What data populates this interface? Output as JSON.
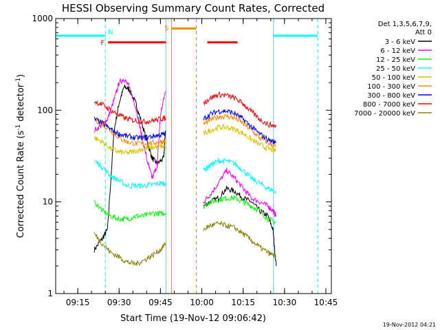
{
  "chart_data": {
    "type": "line",
    "title": "HESSI Observing Summary Count Rates, Corrected",
    "xlabel": "Start Time (19-Nov-12 09:06:42)",
    "ylabel_main": "Corrected Count Rate (s",
    "ylabel_sup1": "-1",
    "ylabel_mid": " detector",
    "ylabel_sup2": "-1",
    "ylabel_end": ")",
    "y_scale": "log",
    "ylim": [
      1,
      1000
    ],
    "xlim": [
      "09:07",
      "10:47"
    ],
    "x_ticks": [
      "09:15",
      "09:30",
      "09:45",
      "10:00",
      "10:15",
      "10:30",
      "10:45"
    ],
    "y_ticks": [
      "1",
      "10",
      "100",
      "1000"
    ],
    "timestamp": "19-Nov-2012 04:21",
    "legend_header": [
      "Det 1,3,5,6,7,9,",
      "Att 0"
    ],
    "flags": [
      {
        "label": "N",
        "color": "#00ffff",
        "line": "dashed",
        "at": "09:25"
      },
      {
        "label": "F",
        "color": "#ff0000",
        "line": "",
        "at": "09:26"
      },
      {
        "label": "S",
        "color": "#ff8800",
        "line": "solid",
        "at": "09:49"
      }
    ],
    "series": [
      {
        "name": "3 - 6 keV",
        "color": "#000000",
        "seg1": [
          [
            9.35,
            3.0
          ],
          [
            9.4,
            4.0
          ],
          [
            9.43,
            5.0
          ],
          [
            9.47,
            60
          ],
          [
            9.5,
            120
          ],
          [
            9.53,
            180
          ],
          [
            9.56,
            170
          ],
          [
            9.6,
            120
          ],
          [
            9.63,
            80
          ],
          [
            9.67,
            45
          ],
          [
            9.7,
            30
          ],
          [
            9.73,
            26
          ],
          [
            9.77,
            30
          ],
          [
            9.78,
            60
          ]
        ],
        "seg2": [
          [
            10.01,
            9
          ],
          [
            10.05,
            10
          ],
          [
            10.1,
            11
          ],
          [
            10.15,
            14
          ],
          [
            10.2,
            13
          ],
          [
            10.25,
            11
          ],
          [
            10.3,
            10
          ],
          [
            10.35,
            8
          ],
          [
            10.4,
            7
          ],
          [
            10.43,
            5
          ],
          [
            10.45,
            2
          ]
        ]
      },
      {
        "name": "6 - 12 keV",
        "color": "#ff00ff",
        "seg1": [
          [
            9.35,
            60
          ],
          [
            9.4,
            70
          ],
          [
            9.43,
            80
          ],
          [
            9.47,
            130
          ],
          [
            9.5,
            200
          ],
          [
            9.53,
            220
          ],
          [
            9.56,
            180
          ],
          [
            9.6,
            110
          ],
          [
            9.63,
            60
          ],
          [
            9.67,
            28
          ],
          [
            9.7,
            18
          ],
          [
            9.73,
            25
          ],
          [
            9.75,
            90
          ],
          [
            9.78,
            160
          ]
        ],
        "seg2": [
          [
            10.01,
            10
          ],
          [
            10.05,
            12
          ],
          [
            10.1,
            16
          ],
          [
            10.15,
            22
          ],
          [
            10.2,
            18
          ],
          [
            10.25,
            14
          ],
          [
            10.3,
            11
          ],
          [
            10.35,
            10
          ],
          [
            10.4,
            9
          ],
          [
            10.43,
            8
          ],
          [
            10.45,
            7
          ]
        ]
      },
      {
        "name": "12 - 25 keV",
        "color": "#00ff00",
        "seg1": [
          [
            9.35,
            10
          ],
          [
            9.4,
            8
          ],
          [
            9.45,
            7
          ],
          [
            9.5,
            6.5
          ],
          [
            9.55,
            6.5
          ],
          [
            9.6,
            7
          ],
          [
            9.65,
            7
          ],
          [
            9.7,
            7.5
          ],
          [
            9.75,
            7.5
          ],
          [
            9.78,
            7.5
          ]
        ],
        "seg2": [
          [
            10.01,
            9
          ],
          [
            10.05,
            10
          ],
          [
            10.1,
            10.5
          ],
          [
            10.15,
            11
          ],
          [
            10.2,
            11
          ],
          [
            10.25,
            10
          ],
          [
            10.3,
            9
          ],
          [
            10.35,
            8
          ],
          [
            10.4,
            6.5
          ],
          [
            10.45,
            6
          ]
        ]
      },
      {
        "name": "25 - 50 keV",
        "color": "#00ffff",
        "seg1": [
          [
            9.35,
            28
          ],
          [
            9.4,
            24
          ],
          [
            9.45,
            19
          ],
          [
            9.5,
            17
          ],
          [
            9.55,
            15
          ],
          [
            9.6,
            15
          ],
          [
            9.65,
            15
          ],
          [
            9.7,
            15.5
          ],
          [
            9.75,
            16
          ],
          [
            9.78,
            16
          ]
        ],
        "seg2": [
          [
            10.01,
            22
          ],
          [
            10.05,
            25
          ],
          [
            10.1,
            28
          ],
          [
            10.15,
            28
          ],
          [
            10.2,
            26
          ],
          [
            10.25,
            22
          ],
          [
            10.3,
            18
          ],
          [
            10.35,
            16
          ],
          [
            10.4,
            14
          ],
          [
            10.45,
            13
          ]
        ]
      },
      {
        "name": "50 - 100 keV",
        "color": "#ddc000",
        "seg1": [
          [
            9.35,
            50
          ],
          [
            9.4,
            45
          ],
          [
            9.45,
            38
          ],
          [
            9.5,
            35
          ],
          [
            9.55,
            34
          ],
          [
            9.6,
            36
          ],
          [
            9.65,
            38
          ],
          [
            9.7,
            39
          ],
          [
            9.75,
            40
          ],
          [
            9.78,
            40
          ]
        ],
        "seg2": [
          [
            10.01,
            55
          ],
          [
            10.05,
            60
          ],
          [
            10.1,
            65
          ],
          [
            10.15,
            65
          ],
          [
            10.2,
            62
          ],
          [
            10.25,
            56
          ],
          [
            10.3,
            48
          ],
          [
            10.35,
            42
          ],
          [
            10.4,
            38
          ],
          [
            10.45,
            36
          ]
        ]
      },
      {
        "name": "100 - 300 keV",
        "color": "#ff8800",
        "seg1": [
          [
            9.35,
            80
          ],
          [
            9.4,
            70
          ],
          [
            9.45,
            60
          ],
          [
            9.5,
            50
          ],
          [
            9.55,
            45
          ],
          [
            9.6,
            43
          ],
          [
            9.65,
            43
          ],
          [
            9.7,
            44
          ],
          [
            9.75,
            45
          ],
          [
            9.78,
            46
          ]
        ],
        "seg2": [
          [
            10.01,
            70
          ],
          [
            10.05,
            78
          ],
          [
            10.1,
            85
          ],
          [
            10.15,
            86
          ],
          [
            10.2,
            82
          ],
          [
            10.25,
            72
          ],
          [
            10.3,
            60
          ],
          [
            10.35,
            50
          ],
          [
            10.4,
            44
          ],
          [
            10.45,
            40
          ]
        ]
      },
      {
        "name": "300 - 800 keV",
        "color": "#0000ff",
        "seg1": [
          [
            9.35,
            80
          ],
          [
            9.4,
            72
          ],
          [
            9.45,
            62
          ],
          [
            9.5,
            55
          ],
          [
            9.55,
            52
          ],
          [
            9.6,
            50
          ],
          [
            9.65,
            50
          ],
          [
            9.7,
            52
          ],
          [
            9.75,
            54
          ],
          [
            9.78,
            55
          ]
        ],
        "seg2": [
          [
            10.01,
            80
          ],
          [
            10.05,
            90
          ],
          [
            10.1,
            98
          ],
          [
            10.15,
            98
          ],
          [
            10.2,
            92
          ],
          [
            10.25,
            80
          ],
          [
            10.3,
            66
          ],
          [
            10.35,
            55
          ],
          [
            10.4,
            48
          ],
          [
            10.45,
            44
          ]
        ]
      },
      {
        "name": "800 - 7000 keV",
        "color": "#ff0000",
        "seg1": [
          [
            9.35,
            125
          ],
          [
            9.4,
            115
          ],
          [
            9.45,
            100
          ],
          [
            9.5,
            88
          ],
          [
            9.55,
            80
          ],
          [
            9.6,
            77
          ],
          [
            9.65,
            75
          ],
          [
            9.7,
            77
          ],
          [
            9.75,
            80
          ],
          [
            9.78,
            82
          ]
        ],
        "seg2": [
          [
            10.01,
            120
          ],
          [
            10.05,
            135
          ],
          [
            10.1,
            148
          ],
          [
            10.15,
            145
          ],
          [
            10.2,
            135
          ],
          [
            10.25,
            118
          ],
          [
            10.3,
            96
          ],
          [
            10.35,
            80
          ],
          [
            10.4,
            70
          ],
          [
            10.45,
            67
          ]
        ]
      },
      {
        "name": "7000 - 20000 keV",
        "color": "#888000",
        "seg1": [
          [
            9.35,
            4.5
          ],
          [
            9.4,
            3.5
          ],
          [
            9.45,
            2.8
          ],
          [
            9.5,
            2.5
          ],
          [
            9.55,
            2.2
          ],
          [
            9.6,
            2.1
          ],
          [
            9.65,
            2.3
          ],
          [
            9.7,
            2.6
          ],
          [
            9.75,
            3.0
          ],
          [
            9.78,
            3.5
          ]
        ],
        "seg2": [
          [
            10.01,
            5
          ],
          [
            10.05,
            5.5
          ],
          [
            10.1,
            5.8
          ],
          [
            10.15,
            5.5
          ],
          [
            10.2,
            5.2
          ],
          [
            10.25,
            4.5
          ],
          [
            10.3,
            3.8
          ],
          [
            10.35,
            3.2
          ],
          [
            10.4,
            2.8
          ],
          [
            10.45,
            2.5
          ]
        ]
      }
    ]
  }
}
